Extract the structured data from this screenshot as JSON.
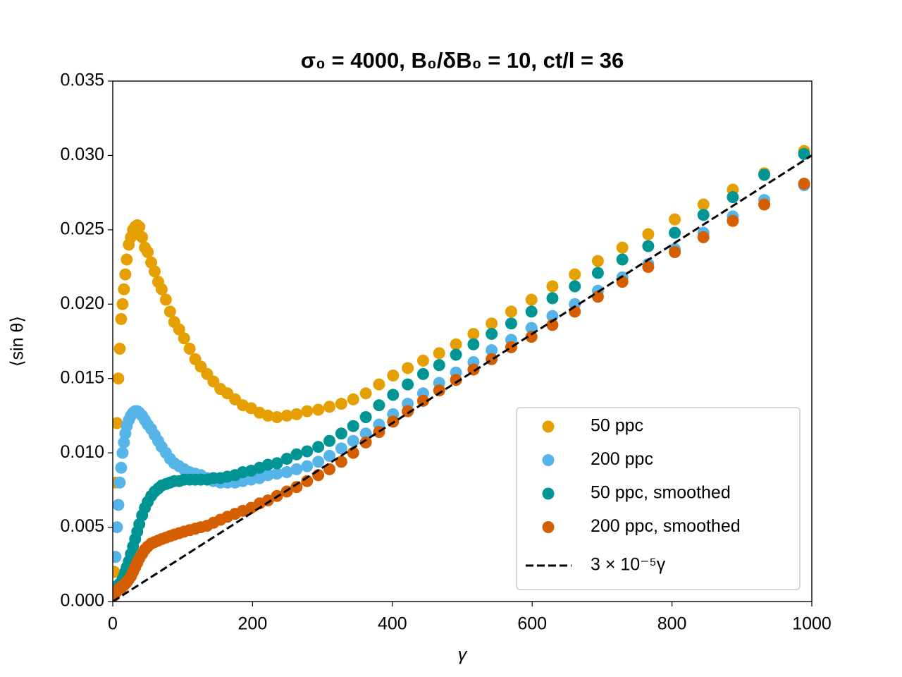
{
  "chart_data": {
    "type": "scatter",
    "title": "σ₀ = 4000, B₀/δB₀ = 10, ct/l = 36",
    "x_label": "γ",
    "y_label": "⟨sin θ⟩",
    "xlim": [
      0,
      1000
    ],
    "ylim": [
      0,
      0.035
    ],
    "xticks": [
      0,
      200,
      400,
      600,
      800,
      1000
    ],
    "yticks": [
      {
        "value": 0,
        "label": "0.000"
      },
      {
        "value": 0.005,
        "label": "0.005"
      },
      {
        "value": 0.01,
        "label": "0.010"
      },
      {
        "value": 0.015,
        "label": "0.015"
      },
      {
        "value": 0.02,
        "label": "0.020"
      },
      {
        "value": 0.025,
        "label": "0.025"
      },
      {
        "value": 0.03,
        "label": "0.030"
      },
      {
        "value": 0.035,
        "label": "0.035"
      }
    ],
    "legend": "lower right",
    "x": [
      2,
      4,
      6,
      8,
      10,
      12,
      14,
      16,
      18,
      20,
      23,
      26,
      29,
      32,
      35,
      38,
      42,
      46,
      50,
      55,
      60,
      65,
      70,
      76,
      82,
      88,
      95,
      102,
      110,
      118,
      126,
      135,
      144,
      154,
      164,
      175,
      186,
      198,
      210,
      222,
      235,
      249,
      263,
      278,
      294,
      310,
      327,
      344,
      362,
      381,
      401,
      422,
      444,
      467,
      491,
      516,
      542,
      570,
      599,
      629,
      661,
      694,
      729,
      766,
      804,
      845,
      887,
      932,
      989
    ],
    "series": [
      {
        "name": "50 ppc",
        "color": "#E69F00",
        "values": [
          0.002,
          0.008,
          0.012,
          0.015,
          0.017,
          0.019,
          0.02,
          0.021,
          0.022,
          0.023,
          0.024,
          0.0245,
          0.025,
          0.0252,
          0.0253,
          0.0252,
          0.0245,
          0.0238,
          0.0235,
          0.0228,
          0.0222,
          0.0215,
          0.021,
          0.0203,
          0.0195,
          0.0188,
          0.0183,
          0.0177,
          0.017,
          0.0163,
          0.0158,
          0.0153,
          0.0148,
          0.0143,
          0.014,
          0.0136,
          0.0132,
          0.013,
          0.0127,
          0.0125,
          0.0124,
          0.0125,
          0.0126,
          0.0128,
          0.0129,
          0.0131,
          0.0133,
          0.0136,
          0.014,
          0.0146,
          0.0152,
          0.0157,
          0.0162,
          0.0167,
          0.0173,
          0.018,
          0.0187,
          0.0195,
          0.0203,
          0.0212,
          0.022,
          0.0229,
          0.0238,
          0.0247,
          0.0257,
          0.0267,
          0.0277,
          0.0288,
          0.0303
        ]
      },
      {
        "name": "200 ppc",
        "color": "#56B4E9",
        "values": [
          0.001,
          0.003,
          0.005,
          0.0065,
          0.008,
          0.009,
          0.01,
          0.0107,
          0.0113,
          0.0118,
          0.0122,
          0.0125,
          0.0127,
          0.0128,
          0.0128,
          0.0127,
          0.0125,
          0.0122,
          0.0119,
          0.0116,
          0.0112,
          0.0108,
          0.0104,
          0.01,
          0.0096,
          0.0093,
          0.0091,
          0.0089,
          0.0087,
          0.0086,
          0.0085,
          0.0083,
          0.0081,
          0.008,
          0.008,
          0.008,
          0.0081,
          0.0082,
          0.0083,
          0.0085,
          0.0086,
          0.0087,
          0.0089,
          0.0091,
          0.0094,
          0.0098,
          0.0103,
          0.0108,
          0.0113,
          0.0119,
          0.0126,
          0.0133,
          0.014,
          0.0147,
          0.0154,
          0.0161,
          0.0169,
          0.0176,
          0.0184,
          0.0192,
          0.02,
          0.0209,
          0.0218,
          0.0227,
          0.0237,
          0.0248,
          0.0259,
          0.027,
          0.028
        ]
      },
      {
        "name": "50 ppc, smoothed",
        "color": "#009595",
        "values": [
          0.0005,
          0.0008,
          0.001,
          0.0011,
          0.0012,
          0.0013,
          0.0015,
          0.0017,
          0.002,
          0.0023,
          0.0027,
          0.0032,
          0.0037,
          0.0042,
          0.0047,
          0.0052,
          0.0058,
          0.0063,
          0.0067,
          0.0071,
          0.0074,
          0.0076,
          0.0078,
          0.0079,
          0.008,
          0.0081,
          0.0081,
          0.0082,
          0.0082,
          0.0082,
          0.0082,
          0.0082,
          0.0083,
          0.0083,
          0.0084,
          0.0085,
          0.0087,
          0.0088,
          0.009,
          0.0092,
          0.0093,
          0.0096,
          0.0099,
          0.0101,
          0.0104,
          0.0108,
          0.0113,
          0.0118,
          0.0124,
          0.0132,
          0.0139,
          0.0146,
          0.0153,
          0.0159,
          0.0166,
          0.0173,
          0.018,
          0.0187,
          0.0195,
          0.0204,
          0.0212,
          0.0221,
          0.023,
          0.0239,
          0.0248,
          0.026,
          0.0272,
          0.0287,
          0.0301
        ]
      },
      {
        "name": "200 ppc, smoothed",
        "color": "#D55E00",
        "values": [
          0.0004,
          0.0006,
          0.0007,
          0.0008,
          0.0009,
          0.0009,
          0.001,
          0.0011,
          0.0012,
          0.0013,
          0.0015,
          0.0017,
          0.002,
          0.0023,
          0.0026,
          0.0029,
          0.0032,
          0.0035,
          0.0037,
          0.0039,
          0.004,
          0.0041,
          0.0042,
          0.0043,
          0.0044,
          0.0045,
          0.0046,
          0.0047,
          0.0048,
          0.0049,
          0.005,
          0.0051,
          0.0053,
          0.0055,
          0.0057,
          0.0059,
          0.0061,
          0.0063,
          0.0066,
          0.0068,
          0.0071,
          0.0074,
          0.0077,
          0.0081,
          0.0085,
          0.0089,
          0.0094,
          0.01,
          0.0107,
          0.0114,
          0.0121,
          0.0128,
          0.0135,
          0.0142,
          0.0149,
          0.0156,
          0.0163,
          0.0171,
          0.0178,
          0.0186,
          0.0195,
          0.0205,
          0.0215,
          0.0225,
          0.0235,
          0.0245,
          0.0256,
          0.0267,
          0.0281
        ]
      },
      {
        "name": "3 × 10⁻⁵γ",
        "type": "line",
        "color": "#000000",
        "dashed": true,
        "x": [
          0,
          1000
        ],
        "values": [
          0,
          0.03
        ]
      }
    ]
  }
}
